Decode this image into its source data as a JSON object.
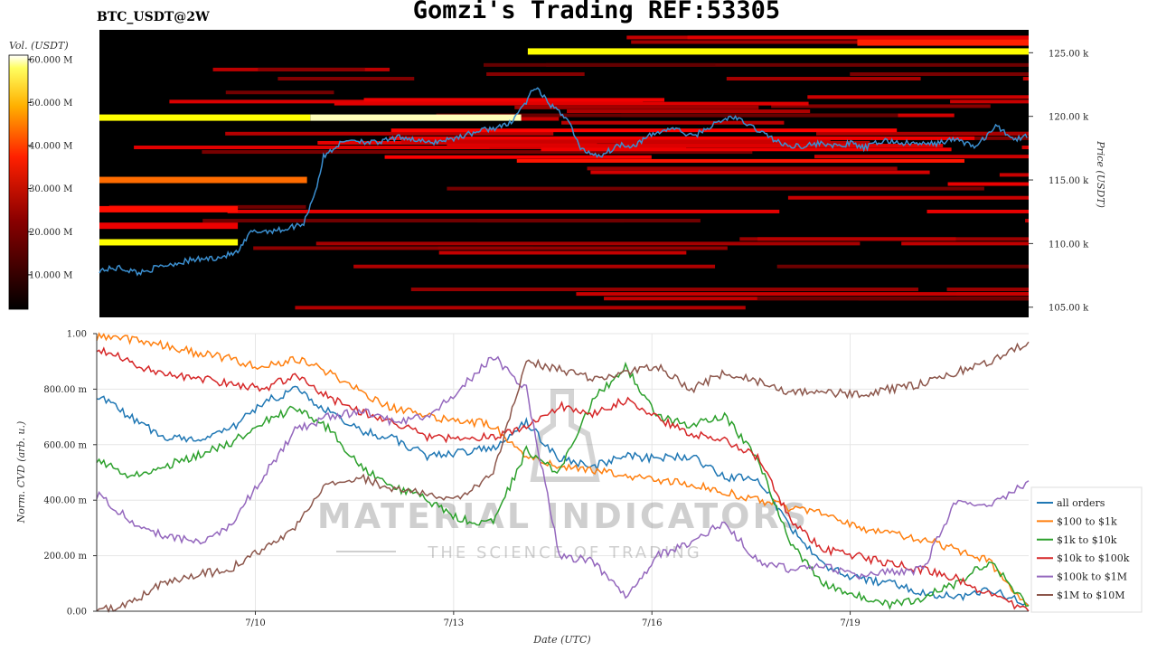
{
  "title": "Gomzi's Trading REF:53305",
  "symbol": "BTC_USDT@2W",
  "watermark": {
    "main": "MATERIAL INDICATORS",
    "sub": "THE SCIENCE OF TRADING"
  },
  "colorbar": {
    "label": "Vol. (USDT)",
    "ticks": [
      "10.000 M",
      "20.000 M",
      "30.000 M",
      "40.000 M",
      "50.000 M",
      "60.000 M"
    ],
    "colormap": "hot"
  },
  "colors": {
    "price_line": "#3b8fd0",
    "heatmap_bg": "#000000"
  },
  "chart_data": [
    {
      "type": "heatmap",
      "name": "order book liquidity heatmap with price",
      "ylabel": "Price (USDT)",
      "ylim": [
        104200,
        126800
      ],
      "y_ticks": [
        "105.00 k",
        "110.00 k",
        "115.00 k",
        "120.00 k",
        "125.00 k"
      ],
      "y_tick_values": [
        105000,
        110000,
        115000,
        120000,
        125000
      ],
      "x_range_days": [
        "2025-07-08",
        "2025-07-22T12:00"
      ],
      "price_series": {
        "x_days": [
          0,
          0.3,
          0.6,
          1.0,
          1.4,
          1.8,
          2.1,
          2.3,
          2.8,
          3.1,
          3.3,
          3.4,
          3.6,
          3.8,
          4.2,
          4.6,
          5.0,
          5.4,
          5.8,
          6.2,
          6.5,
          6.6,
          6.9,
          7.1,
          7.3,
          7.6,
          7.9,
          8.1,
          8.4,
          8.7,
          9.0,
          9.3,
          9.6,
          10.0,
          10.4,
          10.7,
          11.0,
          11.2,
          11.4,
          11.6,
          11.9,
          12.2,
          12.6,
          13.0,
          13.3,
          13.6,
          13.9,
          14.1
        ],
        "y_price": [
          107900,
          108100,
          107700,
          108300,
          108700,
          108900,
          109300,
          110900,
          111100,
          111600,
          114500,
          116800,
          117700,
          118200,
          117900,
          118400,
          117900,
          118300,
          118900,
          119300,
          121300,
          122300,
          120600,
          119900,
          117400,
          116900,
          117800,
          117700,
          118600,
          119100,
          118400,
          119300,
          120000,
          118900,
          117700,
          117700,
          117900,
          117600,
          117900,
          117500,
          118100,
          117900,
          117800,
          118200,
          117600,
          119200,
          118200,
          118500
        ]
      },
      "liquidity_bands": [
        {
          "price": 125100,
          "start_day": 6.5,
          "end_day": 14.1,
          "volume_m": 55
        },
        {
          "price": 125800,
          "start_day": 11.5,
          "end_day": 14.1,
          "volume_m": 30
        },
        {
          "price": 119900,
          "start_day": 0,
          "end_day": 3.2,
          "volume_m": 58
        },
        {
          "price": 119900,
          "start_day": 3.2,
          "end_day": 6.4,
          "volume_m": 68
        },
        {
          "price": 115000,
          "start_day": 0,
          "end_day": 3.15,
          "volume_m": 38
        },
        {
          "price": 110100,
          "start_day": 0,
          "end_day": 2.1,
          "volume_m": 57
        },
        {
          "price": 112700,
          "start_day": 0,
          "end_day": 2.1,
          "volume_m": 28
        },
        {
          "price": 111400,
          "start_day": 0,
          "end_day": 2.1,
          "volume_m": 25
        }
      ]
    },
    {
      "type": "line",
      "name": "normalized CVD",
      "xlabel": "Date (UTC)",
      "ylabel": "Norm. CVD (arb. u.)",
      "ylim": [
        0,
        1
      ],
      "y_ticks": [
        "0.00",
        "200.00 m",
        "400.00 m",
        "600.00 m",
        "800.00 m",
        "1.00"
      ],
      "y_tick_values": [
        0,
        0.2,
        0.4,
        0.6,
        0.8,
        1.0
      ],
      "x_ticks": [
        "7/10",
        "7/13",
        "7/16",
        "7/19"
      ],
      "x_tick_values_days": [
        2.4,
        5.4,
        8.4,
        11.4
      ],
      "x_days": [
        0,
        0.5,
        1.0,
        1.5,
        2.0,
        2.5,
        3.0,
        3.5,
        4.0,
        4.5,
        5.0,
        5.5,
        6.0,
        6.5,
        7.0,
        7.5,
        8.0,
        8.5,
        9.0,
        9.5,
        10.0,
        10.5,
        11.0,
        11.5,
        12.0,
        12.5,
        13.0,
        13.5,
        14.1
      ],
      "series": [
        {
          "name": "all orders",
          "color": "#1f77b4",
          "values": [
            0.78,
            0.7,
            0.63,
            0.62,
            0.65,
            0.75,
            0.8,
            0.72,
            0.65,
            0.62,
            0.56,
            0.57,
            0.59,
            0.68,
            0.55,
            0.52,
            0.56,
            0.55,
            0.56,
            0.48,
            0.48,
            0.3,
            0.16,
            0.12,
            0.1,
            0.07,
            0.05,
            0.08,
            0.02
          ]
        },
        {
          "name": "$100 to $1k",
          "color": "#ff7f0e",
          "values": [
            0.99,
            0.98,
            0.96,
            0.93,
            0.91,
            0.88,
            0.91,
            0.86,
            0.79,
            0.73,
            0.7,
            0.69,
            0.67,
            0.56,
            0.52,
            0.51,
            0.49,
            0.47,
            0.46,
            0.43,
            0.4,
            0.37,
            0.36,
            0.3,
            0.28,
            0.26,
            0.22,
            0.18,
            0.02
          ]
        },
        {
          "name": "$1k to $10k",
          "color": "#2ca02c",
          "values": [
            0.55,
            0.48,
            0.52,
            0.56,
            0.6,
            0.68,
            0.73,
            0.66,
            0.52,
            0.45,
            0.4,
            0.33,
            0.32,
            0.58,
            0.5,
            0.76,
            0.88,
            0.7,
            0.67,
            0.7,
            0.55,
            0.24,
            0.1,
            0.06,
            0.02,
            0.05,
            0.1,
            0.18,
            0.02
          ]
        },
        {
          "name": "$10k to $100k",
          "color": "#d62728",
          "values": [
            0.95,
            0.9,
            0.85,
            0.84,
            0.82,
            0.8,
            0.85,
            0.77,
            0.72,
            0.68,
            0.63,
            0.62,
            0.63,
            0.66,
            0.74,
            0.71,
            0.76,
            0.69,
            0.64,
            0.62,
            0.55,
            0.33,
            0.22,
            0.2,
            0.17,
            0.15,
            0.12,
            0.06,
            0.0
          ]
        },
        {
          "name": "$100k to $1M",
          "color": "#9467bd",
          "values": [
            0.42,
            0.33,
            0.27,
            0.25,
            0.3,
            0.48,
            0.65,
            0.7,
            0.72,
            0.68,
            0.7,
            0.8,
            0.92,
            0.8,
            0.2,
            0.18,
            0.05,
            0.2,
            0.25,
            0.32,
            0.18,
            0.15,
            0.16,
            0.13,
            0.14,
            0.15,
            0.4,
            0.38,
            0.47
          ]
        },
        {
          "name": "$1M to $10M",
          "color": "#8c564b",
          "values": [
            0.0,
            0.03,
            0.1,
            0.13,
            0.15,
            0.22,
            0.3,
            0.46,
            0.48,
            0.44,
            0.42,
            0.4,
            0.5,
            0.9,
            0.87,
            0.84,
            0.86,
            0.88,
            0.8,
            0.86,
            0.83,
            0.79,
            0.79,
            0.78,
            0.8,
            0.82,
            0.86,
            0.9,
            0.97
          ]
        }
      ],
      "legend": "right"
    }
  ]
}
